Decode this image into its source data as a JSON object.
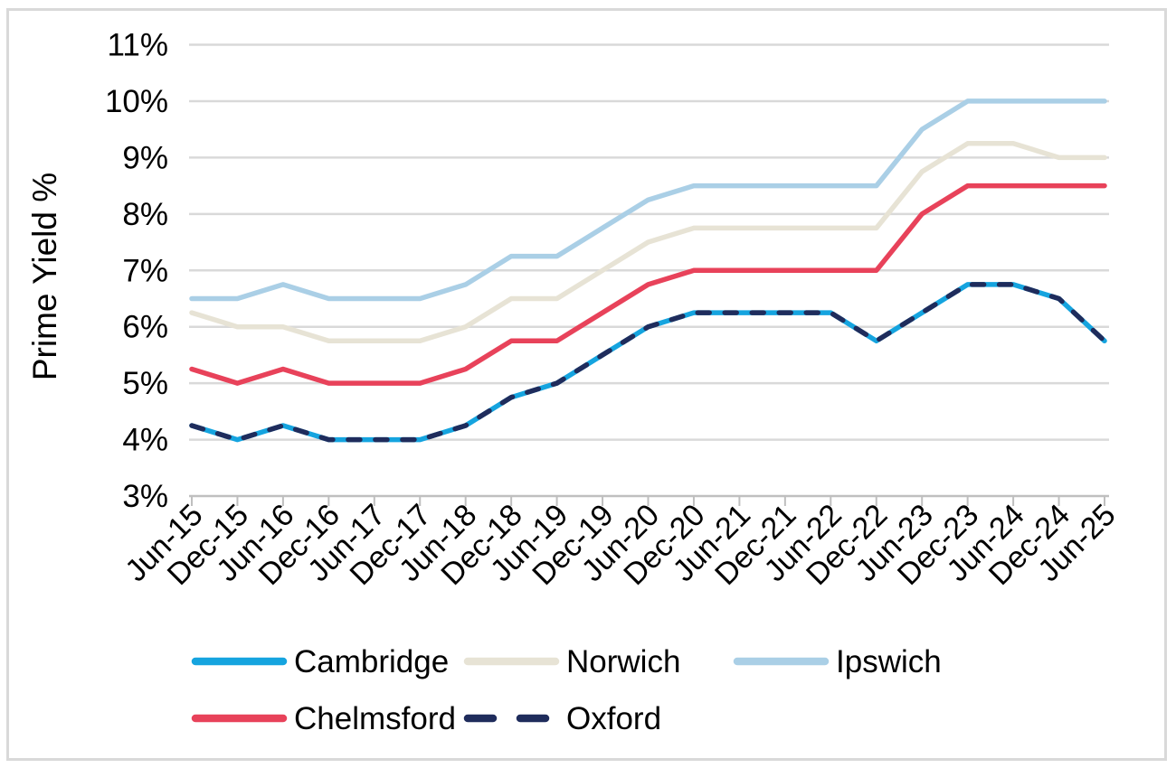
{
  "window": {
    "background": "#FFFFFF",
    "border_color": "#D9D9D9"
  },
  "colors": {
    "gridline": "#D9D9D9",
    "axis_line": "#BFBFBF",
    "text": "#000000"
  },
  "chart_data": {
    "type": "line",
    "title": "",
    "xlabel": "",
    "ylabel": "Prime Yield %",
    "grid": true,
    "legend_position": "bottom",
    "y_axis": {
      "min": 3,
      "max": 11,
      "step": 1,
      "unit": "%",
      "tick_labels": [
        "3%",
        "4%",
        "5%",
        "6%",
        "7%",
        "8%",
        "9%",
        "10%",
        "11%"
      ]
    },
    "categories": [
      "Jun-15",
      "Dec-15",
      "Jun-16",
      "Dec-16",
      "Jun-17",
      "Dec-17",
      "Jun-18",
      "Dec-18",
      "Jun-19",
      "Dec-19",
      "Jun-20",
      "Dec-20",
      "Jun-21",
      "Dec-21",
      "Jun-22",
      "Dec-22",
      "Jun-23",
      "Dec-23",
      "Jun-24",
      "Dec-24",
      "Jun-25"
    ],
    "series": [
      {
        "name": "Cambridge",
        "color": "#15A4DF",
        "line_style": "solid",
        "values": [
          4.25,
          4.0,
          4.25,
          4.0,
          4.0,
          4.0,
          4.25,
          4.75,
          5.0,
          5.5,
          6.0,
          6.25,
          6.25,
          6.25,
          6.25,
          5.75,
          6.25,
          6.75,
          6.75,
          6.5,
          5.75
        ]
      },
      {
        "name": "Norwich",
        "color": "#E7E3D5",
        "line_style": "solid",
        "values": [
          6.25,
          6.0,
          6.0,
          5.75,
          5.75,
          5.75,
          6.0,
          6.5,
          6.5,
          7.0,
          7.5,
          7.75,
          7.75,
          7.75,
          7.75,
          7.75,
          8.75,
          9.25,
          9.25,
          9.0,
          9.0
        ]
      },
      {
        "name": "Ipswich",
        "color": "#AACFE6",
        "line_style": "solid",
        "values": [
          6.5,
          6.5,
          6.75,
          6.5,
          6.5,
          6.5,
          6.75,
          7.25,
          7.25,
          7.75,
          8.25,
          8.5,
          8.5,
          8.5,
          8.5,
          8.5,
          9.5,
          10.0,
          10.0,
          10.0,
          10.0
        ]
      },
      {
        "name": "Chelmsford",
        "color": "#E8425A",
        "line_style": "solid",
        "values": [
          5.25,
          5.0,
          5.25,
          5.0,
          5.0,
          5.0,
          5.25,
          5.75,
          5.75,
          6.25,
          6.75,
          7.0,
          7.0,
          7.0,
          7.0,
          7.0,
          8.0,
          8.5,
          8.5,
          8.5,
          8.5
        ]
      },
      {
        "name": "Oxford",
        "color": "#1F2C5C",
        "line_style": "dashed",
        "values": [
          4.25,
          4.0,
          4.25,
          4.0,
          4.0,
          4.0,
          4.25,
          4.75,
          5.0,
          5.5,
          6.0,
          6.25,
          6.25,
          6.25,
          6.25,
          5.75,
          6.25,
          6.75,
          6.75,
          6.5,
          5.75
        ]
      }
    ],
    "legend": {
      "rows": [
        [
          "Cambridge",
          "Norwich",
          "Ipswich"
        ],
        [
          "Chelmsford",
          "Oxford"
        ]
      ]
    }
  }
}
